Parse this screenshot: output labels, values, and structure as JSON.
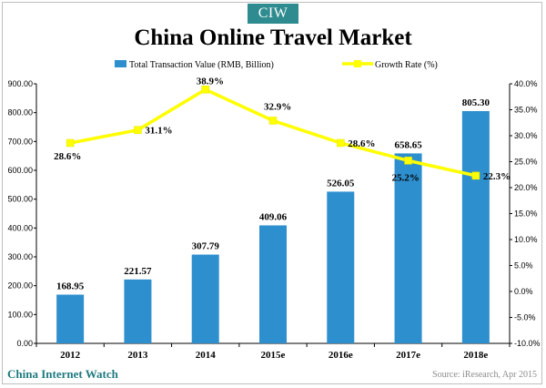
{
  "header": {
    "logo": "CIW",
    "title": "China Online Travel Market"
  },
  "footer": {
    "brand": "China Internet Watch",
    "source": "Source: iResearch, Apr 2015"
  },
  "colors": {
    "bar": "#2e8fce",
    "line": "#ffff00",
    "marker": "#ffff00",
    "brand": "#1f7a80"
  },
  "chart_data": {
    "type": "bar",
    "title": "China Online Travel Market",
    "categories": [
      "2012",
      "2013",
      "2014",
      "2015e",
      "2016e",
      "2017e",
      "2018e"
    ],
    "series": [
      {
        "name": "Total Transaction Value (RMB, Billion)",
        "type": "bar",
        "axis": "left",
        "values": [
          168.95,
          221.57,
          307.79,
          409.06,
          526.05,
          658.65,
          805.3
        ],
        "labels": [
          "168.95",
          "221.57",
          "307.79",
          "409.06",
          "526.05",
          "658.65",
          "805.30"
        ]
      },
      {
        "name": "Growth Rate (%)",
        "type": "line",
        "axis": "right",
        "values": [
          28.6,
          31.1,
          38.9,
          32.9,
          28.6,
          25.2,
          22.3
        ],
        "labels": [
          "28.6%",
          "31.1%",
          "38.9%",
          "32.9%",
          "28.6%",
          "25.2%",
          "22.3%"
        ]
      }
    ],
    "y_left": {
      "ylim": [
        0,
        900
      ],
      "ticks": [
        "0.00",
        "100.00",
        "200.00",
        "300.00",
        "400.00",
        "500.00",
        "600.00",
        "700.00",
        "800.00",
        "900.00"
      ]
    },
    "y_right": {
      "ylim": [
        -10,
        40
      ],
      "ticks": [
        "-10.0%",
        "-5.0%",
        "0.0%",
        "5.0%",
        "10.0%",
        "15.0%",
        "20.0%",
        "25.0%",
        "30.0%",
        "35.0%",
        "40.0%"
      ]
    },
    "grid": false,
    "legend": "top-center"
  }
}
